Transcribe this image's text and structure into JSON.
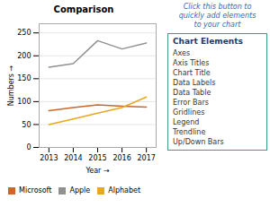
{
  "chart_data": {
    "type": "line",
    "title": "Comparison",
    "xlabel": "Year",
    "ylabel": "Numbers",
    "x": [
      2013,
      2014,
      2015,
      2016,
      2017
    ],
    "series": [
      {
        "name": "Microsoft",
        "color": "#c8682a",
        "values": [
          80,
          87,
          93,
          90,
          88
        ]
      },
      {
        "name": "Apple",
        "color": "#909090",
        "values": [
          175,
          183,
          233,
          215,
          228
        ]
      },
      {
        "name": "Alphabet",
        "color": "#e8a820",
        "values": [
          50,
          62,
          75,
          87,
          110
        ]
      }
    ],
    "xlim": [
      2012.6,
      2017.4
    ],
    "xticks": [
      2013,
      2014,
      2015,
      2016,
      2017
    ],
    "ylim": [
      0,
      270
    ],
    "yticks": [
      0,
      50,
      100,
      150,
      200,
      250
    ],
    "grid": true,
    "annotations": [
      "Click this button to\nquickly add elements\nto your chart",
      "Chart Elements",
      "Axes",
      "Axis Titles",
      "Chart Title",
      "Data Labels",
      "Data Table",
      "Error Bars",
      "Gridlines",
      "Legend",
      "Trendline",
      "Up/Down Bars"
    ]
  }
}
